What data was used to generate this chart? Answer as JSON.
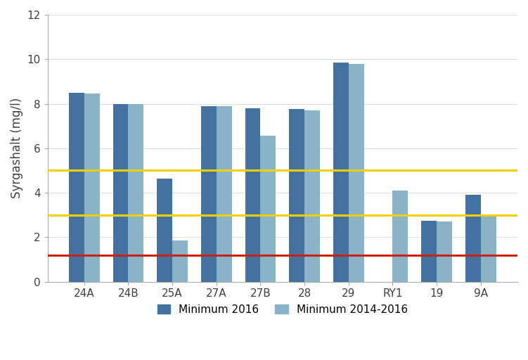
{
  "categories": [
    "24A",
    "24B",
    "25A",
    "27A",
    "27B",
    "28",
    "29",
    "RY1",
    "19",
    "9A"
  ],
  "min_2016": [
    8.5,
    8.0,
    4.65,
    7.9,
    7.8,
    7.75,
    9.85,
    0.0,
    2.75,
    3.9
  ],
  "min_2014_2016": [
    8.45,
    8.0,
    1.85,
    7.9,
    6.55,
    7.7,
    9.8,
    4.1,
    2.7,
    2.95
  ],
  "color_2016": "#4472a0",
  "color_2014": "#8ab3c8",
  "ylabel": "Syrgashalt (mg/l)",
  "ylim": [
    0,
    12
  ],
  "yticks": [
    0,
    2,
    4,
    6,
    8,
    10,
    12
  ],
  "hline_yellow1": 5.0,
  "hline_yellow2": 3.0,
  "hline_red": 1.2,
  "hline_yellow_color": "#f5d000",
  "hline_red_color": "#cc2200",
  "legend_label_2016": "Minimum 2016",
  "legend_label_2014": "Minimum 2014-2016",
  "bar_width": 0.35,
  "background_color": "#ffffff"
}
